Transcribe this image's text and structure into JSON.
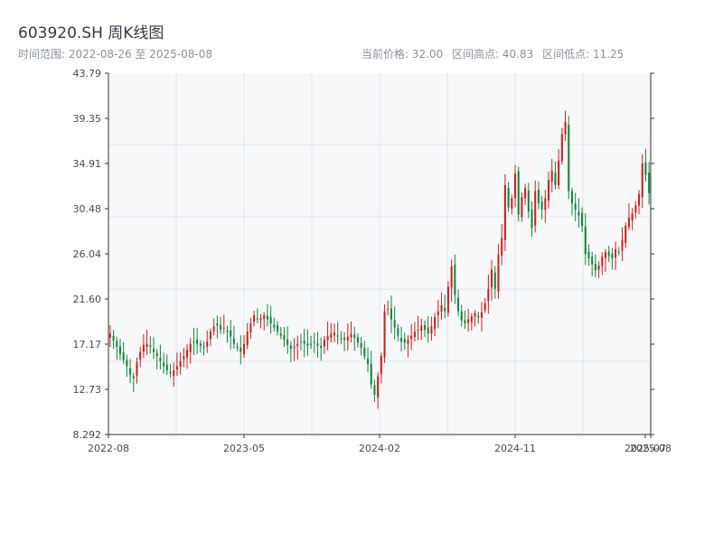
{
  "header": {
    "title": "603920.SH 周K线图",
    "range_text": "时间范围: 2022-08-26 至 2025-08-08",
    "current_price": "当前价格: 32.00",
    "high": "区间高点: 40.83",
    "low": "区间低点: 11.25"
  },
  "colors": {
    "up": "#cc1f1f",
    "down": "#13843a",
    "plot_bg": "#f6f8fa",
    "grid": "#e3e6ea",
    "axis": "#333333"
  },
  "chart_data": {
    "type": "candlestick",
    "title": "603920.SH 周K线图",
    "period": "weekly",
    "ylim": [
      8.292,
      43.79
    ],
    "y_ticks": [
      "8.292",
      "12.73",
      "17.17",
      "21.60",
      "26.04",
      "30.48",
      "34.91",
      "39.35",
      "43.79"
    ],
    "x_ticks": [
      "2022-08",
      "2023-05",
      "2024-02",
      "2024-11",
      "2025-07",
      "2025-08"
    ],
    "grid": true,
    "current_price": 32.0,
    "range_high": 40.83,
    "range_low": 11.25,
    "closes": [
      18.2,
      17.5,
      16.9,
      16.2,
      15.6,
      15.0,
      14.2,
      13.8,
      15.4,
      16.4,
      17.1,
      17.2,
      16.9,
      16.4,
      16.0,
      15.5,
      15.0,
      14.6,
      14.3,
      14.6,
      15.0,
      15.5,
      16.0,
      16.6,
      17.2,
      17.4,
      17.2,
      17.0,
      16.8,
      17.4,
      18.4,
      18.9,
      19.0,
      18.6,
      18.8,
      18.4,
      17.9,
      17.2,
      16.8,
      16.4,
      17.2,
      18.4,
      19.2,
      20.0,
      19.6,
      19.7,
      20.0,
      19.6,
      19.2,
      18.8,
      18.4,
      18.0,
      17.6,
      17.1,
      16.7,
      16.9,
      17.2,
      17.4,
      17.2,
      17.0,
      17.1,
      17.3,
      17.0,
      16.8,
      17.6,
      18.0,
      18.2,
      18.3,
      18.0,
      17.7,
      17.6,
      17.9,
      18.2,
      17.8,
      17.3,
      16.8,
      16.0,
      15.2,
      13.2,
      12.2,
      14.0,
      16.0,
      20.4,
      20.6,
      19.6,
      18.8,
      18.0,
      17.4,
      17.3,
      17.6,
      18.0,
      18.4,
      18.6,
      19.0,
      18.6,
      18.2,
      18.9,
      19.8,
      20.4,
      21.0,
      20.4,
      22.8,
      24.8,
      22.0,
      20.4,
      19.5,
      19.2,
      19.6,
      19.9,
      20.2,
      19.8,
      20.3,
      21.2,
      22.6,
      24.5,
      22.6,
      26.0,
      27.6,
      32.8,
      30.6,
      31.5,
      33.9,
      29.9,
      31.6,
      32.5,
      30.2,
      28.6,
      32.2,
      31.0,
      30.4,
      31.5,
      33.3,
      34.2,
      32.8,
      35.2,
      37.8,
      39.0,
      32.2,
      31.0,
      30.4,
      29.8,
      28.8,
      26.0,
      25.6,
      25.0,
      24.4,
      24.9,
      25.8,
      26.2,
      25.8,
      25.6,
      26.5,
      26.2,
      27.4,
      28.8,
      29.6,
      30.0,
      30.8,
      31.9,
      34.9,
      33.8,
      32.0
    ]
  }
}
